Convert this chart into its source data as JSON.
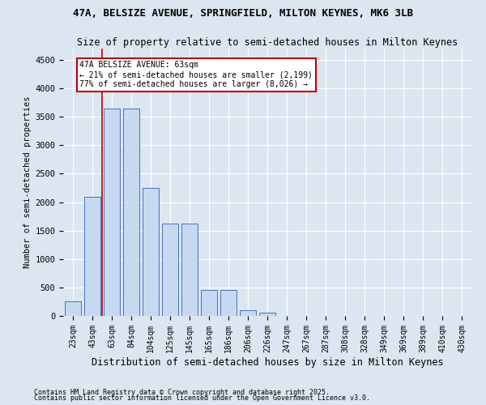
{
  "title1": "47A, BELSIZE AVENUE, SPRINGFIELD, MILTON KEYNES, MK6 3LB",
  "title2": "Size of property relative to semi-detached houses in Milton Keynes",
  "xlabel": "Distribution of semi-detached houses by size in Milton Keynes",
  "ylabel": "Number of semi-detached properties",
  "categories": [
    "23sqm",
    "43sqm",
    "63sqm",
    "84sqm",
    "104sqm",
    "125sqm",
    "145sqm",
    "165sqm",
    "186sqm",
    "206sqm",
    "226sqm",
    "247sqm",
    "267sqm",
    "287sqm",
    "308sqm",
    "328sqm",
    "349sqm",
    "369sqm",
    "389sqm",
    "410sqm",
    "430sqm"
  ],
  "values": [
    250,
    2100,
    3650,
    3650,
    2250,
    1625,
    1625,
    450,
    450,
    100,
    55,
    0,
    0,
    0,
    0,
    0,
    0,
    0,
    0,
    0,
    0
  ],
  "bar_color": "#c6d9f0",
  "bar_edge_color": "#4472c4",
  "vline_x": 1.5,
  "vline_color": "#c00000",
  "annotation_text": "47A BELSIZE AVENUE: 63sqm\n← 21% of semi-detached houses are smaller (2,199)\n77% of semi-detached houses are larger (8,026) →",
  "annotation_box_color": "white",
  "annotation_box_edge": "#c00000",
  "ylim": [
    0,
    4700
  ],
  "yticks": [
    0,
    500,
    1000,
    1500,
    2000,
    2500,
    3000,
    3500,
    4000,
    4500
  ],
  "footnote1": "Contains HM Land Registry data © Crown copyright and database right 2025.",
  "footnote2": "Contains public sector information licensed under the Open Government Licence v3.0.",
  "bg_color": "#dce6f1",
  "plot_bg_color": "#dce6f1",
  "grid_color": "white",
  "title_fontsize": 9,
  "subtitle_fontsize": 8.5
}
